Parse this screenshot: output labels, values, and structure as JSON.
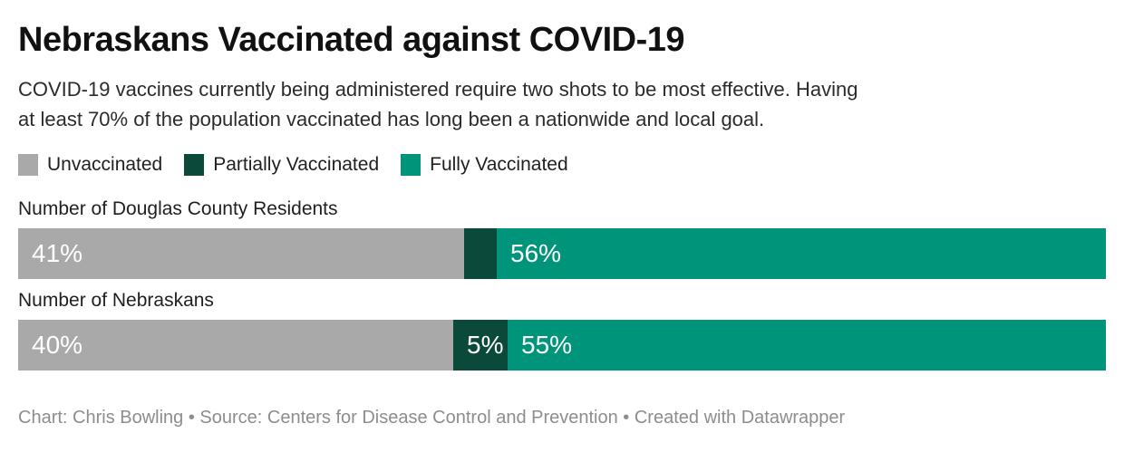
{
  "header": {
    "title": "Nebraskans Vaccinated against COVID-19",
    "description_lines": [
      "COVID-19 vaccines currently being administered require two shots to be most effective. Having",
      "at least 70% of the population vaccinated has long been a nationwide and local goal."
    ]
  },
  "legend": {
    "items": [
      {
        "label": "Unvaccinated",
        "color": "#a9a9a9"
      },
      {
        "label": "Partially Vaccinated",
        "color": "#0b4a3a"
      },
      {
        "label": "Fully Vaccinated",
        "color": "#00947b"
      }
    ]
  },
  "chart_data": {
    "type": "bar",
    "stacked": true,
    "orientation": "horizontal",
    "unit": "percent",
    "xlim": [
      0,
      100
    ],
    "grid": false,
    "legend_position": "top",
    "categories": [
      "Number of Douglas County Residents",
      "Number of Nebraskans"
    ],
    "series": [
      {
        "name": "Unvaccinated",
        "color": "#a9a9a9",
        "values": [
          41,
          40
        ],
        "labels": [
          "41%",
          "40%"
        ]
      },
      {
        "name": "Partially Vaccinated",
        "color": "#0b4a3a",
        "values": [
          3,
          5
        ],
        "labels": [
          "",
          "5%"
        ]
      },
      {
        "name": "Fully Vaccinated",
        "color": "#00947b",
        "values": [
          56,
          55
        ],
        "labels": [
          "56%",
          "55%"
        ]
      }
    ]
  },
  "footer": {
    "byline": "Chart: Chris Bowling • Source: Centers for Disease Control and Prevention • Created with Datawrapper"
  }
}
